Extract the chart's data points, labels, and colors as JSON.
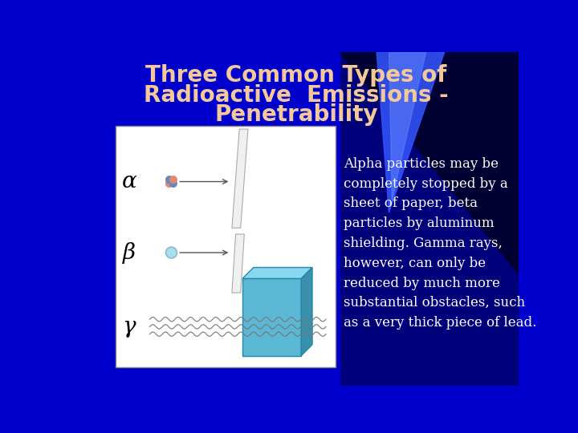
{
  "title_line1": "Three Common Types of",
  "title_line2": "Radioactive  Emissions -",
  "title_line3": "Penetrability",
  "title_color": "#F5C89A",
  "bg_blue": "#0000CC",
  "body_text_color": "#FFFFFF",
  "diagram_bg": "#FFFFFF",
  "alpha_symbol": "α",
  "beta_symbol": "β",
  "gamma_symbol": "γ",
  "symbol_color": "#000000",
  "lead_front_color": "#5BB8D4",
  "lead_top_color": "#88D8EE",
  "lead_right_color": "#3A90AA",
  "lead_edge_color": "#2288AA",
  "body_text": "Alpha particles may be\ncompletely stopped by a\nsheet of paper, beta\nparticles by aluminum\nshielding. Gamma rays,\nhowever, can only be\nreduced by much more\nsubstantial obstacles, such\nas a very thick piece of lead.",
  "alpha_colors": [
    "#CC7766",
    "#CC7766",
    "#6688CC",
    "#6688CC"
  ],
  "barrier_face": "#F0F0F0",
  "barrier_edge": "#AAAAAA",
  "arrow_color": "#555555"
}
